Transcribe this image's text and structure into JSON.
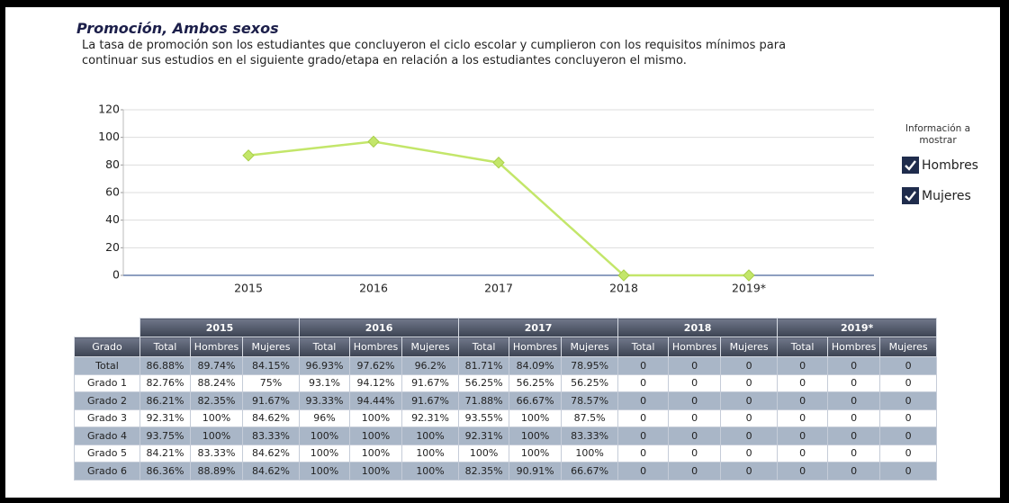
{
  "header": {
    "title": "Promoción, Ambos sexos",
    "description": [
      "La tasa de promoción son los estudiantes que concluyeron el ciclo escolar y cumplieron con los requisitos mínimos para",
      "continuar sus estudios en el siguiente grado/etapa en relación a los estudiantes concluyeron el mismo."
    ]
  },
  "chart_data": {
    "type": "line",
    "categories": [
      "2015",
      "2016",
      "2017",
      "2018",
      "2019*"
    ],
    "values": [
      86.88,
      96.93,
      81.71,
      0,
      0
    ],
    "color": "#c3e66a",
    "ylim": [
      0,
      120
    ],
    "yticks": [
      0,
      20,
      40,
      60,
      80,
      100,
      120
    ],
    "grid": true
  },
  "legend_panel": {
    "title": [
      "Información a",
      "mostrar"
    ],
    "options": [
      "Hombres",
      "Mujeres"
    ]
  },
  "table": {
    "years": [
      "2015",
      "2016",
      "2017",
      "2018",
      "2019*"
    ],
    "header_row": [
      "Grado",
      "Total",
      "Hombres",
      "Mujeres",
      "Total",
      "Hombres",
      "Mujeres",
      "Total",
      "Hombres",
      "Mujeres",
      "Total",
      "Hombres",
      "Mujeres",
      "Total",
      "Hombres",
      "Mujeres"
    ],
    "rows": [
      [
        "Total",
        "86.88%",
        "89.74%",
        "84.15%",
        "96.93%",
        "97.62%",
        "96.2%",
        "81.71%",
        "84.09%",
        "78.95%",
        "0",
        "0",
        "0",
        "0",
        "0",
        "0"
      ],
      [
        "Grado 1",
        "82.76%",
        "88.24%",
        "75%",
        "93.1%",
        "94.12%",
        "91.67%",
        "56.25%",
        "56.25%",
        "56.25%",
        "0",
        "0",
        "0",
        "0",
        "0",
        "0"
      ],
      [
        "Grado 2",
        "86.21%",
        "82.35%",
        "91.67%",
        "93.33%",
        "94.44%",
        "91.67%",
        "71.88%",
        "66.67%",
        "78.57%",
        "0",
        "0",
        "0",
        "0",
        "0",
        "0"
      ],
      [
        "Grado 3",
        "92.31%",
        "100%",
        "84.62%",
        "96%",
        "100%",
        "92.31%",
        "93.55%",
        "100%",
        "87.5%",
        "0",
        "0",
        "0",
        "0",
        "0",
        "0"
      ],
      [
        "Grado 4",
        "93.75%",
        "100%",
        "83.33%",
        "100%",
        "100%",
        "100%",
        "92.31%",
        "100%",
        "83.33%",
        "0",
        "0",
        "0",
        "0",
        "0",
        "0"
      ],
      [
        "Grado 5",
        "84.21%",
        "83.33%",
        "84.62%",
        "100%",
        "100%",
        "100%",
        "100%",
        "100%",
        "100%",
        "0",
        "0",
        "0",
        "0",
        "0",
        "0"
      ],
      [
        "Grado 6",
        "86.36%",
        "88.89%",
        "84.62%",
        "100%",
        "100%",
        "100%",
        "82.35%",
        "90.91%",
        "66.67%",
        "0",
        "0",
        "0",
        "0",
        "0",
        "0"
      ]
    ]
  }
}
